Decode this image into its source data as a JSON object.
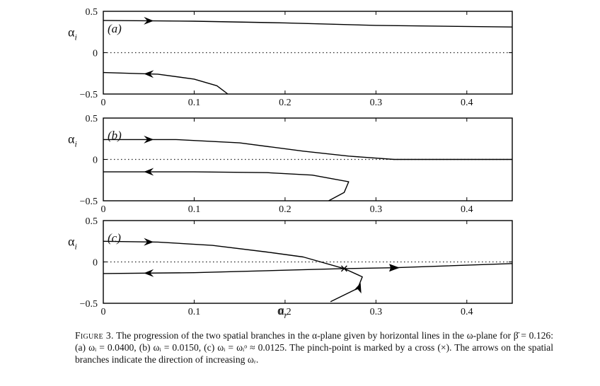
{
  "figure": {
    "x_ticks": [
      "0",
      "0.1",
      "0.2",
      "0.3",
      "0.4"
    ],
    "y_ticks": [
      "0.5",
      "0",
      "−0.5"
    ],
    "y_label": "α",
    "y_label_sub": "i",
    "x_label": "α",
    "x_label_sub": "r",
    "panels": [
      {
        "label": "(a)",
        "omega_i": "0.0400",
        "branches": [
          {
            "points": [
              [
                0.0,
                0.39
              ],
              [
                0.1,
                0.38
              ],
              [
                0.2,
                0.36
              ],
              [
                0.3,
                0.33
              ],
              [
                0.45,
                0.31
              ]
            ],
            "arrow_at": 0.05
          },
          {
            "points": [
              [
                0.0,
                -0.24
              ],
              [
                0.06,
                -0.26
              ],
              [
                0.1,
                -0.32
              ],
              [
                0.125,
                -0.4
              ],
              [
                0.137,
                -0.5
              ]
            ],
            "arrow_at": 0.05
          }
        ]
      },
      {
        "label": "(b)",
        "omega_i": "0.0150",
        "branches": [
          {
            "points": [
              [
                0.0,
                0.24
              ],
              [
                0.08,
                0.24
              ],
              [
                0.15,
                0.2
              ],
              [
                0.22,
                0.1
              ],
              [
                0.27,
                0.04
              ],
              [
                0.32,
                0.0
              ],
              [
                0.45,
                0.0
              ]
            ],
            "arrow_at": 0.05
          },
          {
            "points": [
              [
                0.0,
                -0.15
              ],
              [
                0.1,
                -0.15
              ],
              [
                0.18,
                -0.16
              ],
              [
                0.23,
                -0.19
              ],
              [
                0.27,
                -0.27
              ],
              [
                0.265,
                -0.4
              ],
              [
                0.248,
                -0.5
              ]
            ],
            "arrow_at": 0.05
          }
        ]
      },
      {
        "label": "(c)",
        "omega_i": "ωᵢᵒ ≈ 0.0125",
        "branches": [
          {
            "points": [
              [
                0.0,
                0.25
              ],
              [
                0.06,
                0.24
              ],
              [
                0.12,
                0.2
              ],
              [
                0.18,
                0.12
              ],
              [
                0.22,
                0.06
              ],
              [
                0.265,
                -0.08
              ],
              [
                0.285,
                -0.18
              ],
              [
                0.28,
                -0.32
              ],
              [
                0.25,
                -0.48
              ]
            ],
            "arrow_at": 0.05
          },
          {
            "points": [
              [
                0.0,
                -0.14
              ],
              [
                0.1,
                -0.13
              ],
              [
                0.2,
                -0.1
              ],
              [
                0.265,
                -0.08
              ],
              [
                0.32,
                -0.07
              ],
              [
                0.45,
                -0.02
              ]
            ],
            "arrow_at": 0.05
          }
        ],
        "pinch_point": {
          "x": 0.265,
          "y": -0.08
        }
      }
    ]
  },
  "caption": {
    "label": "Figure 3.",
    "text": " The progression of the two spatial branches in the α-plane given by horizontal lines in the ω-plane for β̄ = 0.126: (a) ωᵢ = 0.0400, (b) ωᵢ = 0.0150, (c) ωᵢ = ωᵢᵒ ≈ 0.0125. The pinch-point is marked by a cross (×). The arrows on the spatial branches indicate the direction of increasing ωᵣ."
  },
  "chart_data": [
    {
      "type": "line",
      "title": "(a)",
      "xlabel": "αr",
      "ylabel": "αi",
      "xlim": [
        0,
        0.45
      ],
      "ylim": [
        -0.5,
        0.5
      ],
      "series": [
        {
          "x": [
            0.0,
            0.1,
            0.2,
            0.3,
            0.45
          ],
          "y": [
            0.39,
            0.38,
            0.36,
            0.33,
            0.31
          ]
        },
        {
          "x": [
            0.0,
            0.06,
            0.1,
            0.125,
            0.137
          ],
          "y": [
            -0.24,
            -0.26,
            -0.32,
            -0.4,
            -0.5
          ]
        }
      ]
    },
    {
      "type": "line",
      "title": "(b)",
      "xlabel": "αr",
      "ylabel": "αi",
      "xlim": [
        0,
        0.45
      ],
      "ylim": [
        -0.5,
        0.5
      ],
      "series": [
        {
          "x": [
            0.0,
            0.08,
            0.15,
            0.22,
            0.27,
            0.32,
            0.45
          ],
          "y": [
            0.24,
            0.24,
            0.2,
            0.1,
            0.04,
            0.0,
            0.0
          ]
        },
        {
          "x": [
            0.0,
            0.1,
            0.18,
            0.23,
            0.27,
            0.265,
            0.248
          ],
          "y": [
            -0.15,
            -0.15,
            -0.16,
            -0.19,
            -0.27,
            -0.4,
            -0.5
          ]
        }
      ]
    },
    {
      "type": "line",
      "title": "(c)",
      "xlabel": "αr",
      "ylabel": "αi",
      "xlim": [
        0,
        0.45
      ],
      "ylim": [
        -0.5,
        0.5
      ],
      "series": [
        {
          "x": [
            0.0,
            0.06,
            0.12,
            0.18,
            0.22,
            0.265,
            0.285,
            0.28,
            0.25
          ],
          "y": [
            0.25,
            0.24,
            0.2,
            0.12,
            0.06,
            -0.08,
            -0.18,
            -0.32,
            -0.48
          ]
        },
        {
          "x": [
            0.0,
            0.1,
            0.2,
            0.265,
            0.32,
            0.45
          ],
          "y": [
            -0.14,
            -0.13,
            -0.1,
            -0.08,
            -0.07,
            -0.02
          ]
        }
      ]
    }
  ]
}
